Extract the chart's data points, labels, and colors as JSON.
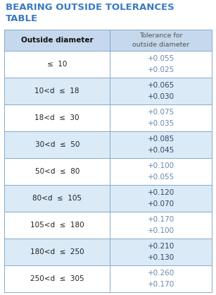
{
  "title_line1": "BEARING OUTSIDE TOLERANCES",
  "title_line2": "TABLE",
  "title_color": "#3a7abf",
  "col1_header": "Outside diameter",
  "col2_header": "Tolerance for\noutside diameter",
  "row_labels": [
    "≤  10",
    "10<d  ≤  18",
    "18<d  ≤  30",
    "30<d  ≤  50",
    "50<d  ≤  80",
    "80<d  ≤  105",
    "105<d  ≤  180",
    "180<d  ≤  250",
    "250<d  ≤  305"
  ],
  "tol_top": [
    "+0.055",
    "+0.065",
    "+0.075",
    "+0.085",
    "+0.100",
    "+0.120",
    "+0.170",
    "+0.210",
    "+0.260"
  ],
  "tol_bot": [
    "+0.025",
    "+0.030",
    "+0.035",
    "+0.045",
    "+0.055",
    "+0.070",
    "+0.100",
    "+0.130",
    "+0.170"
  ],
  "shaded_rows": [
    1,
    3,
    5,
    7
  ],
  "header_bg": "#c5d8ed",
  "row_shaded_bg": "#daeaf7",
  "row_white_bg": "#ffffff",
  "border_color": "#88aac8",
  "text_col1_color": "#222222",
  "text_col2_color": "#6688aa",
  "text_col2_shaded_color": "#334466",
  "header_col1_color": "#111111",
  "header_col2_color": "#555555",
  "figsize": [
    3.07,
    4.18
  ],
  "dpi": 100
}
